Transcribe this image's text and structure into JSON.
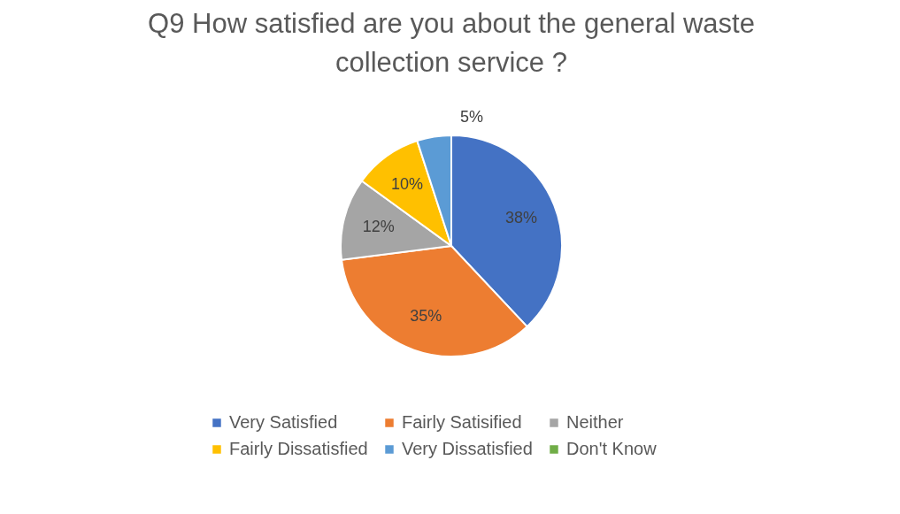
{
  "chart_data": {
    "type": "pie",
    "title": "Q9 How satisfied are you about the general waste collection service ?",
    "categories": [
      "Very Satisfied",
      "Fairly Satisified",
      "Neither",
      "Fairly Dissatisfied",
      "Very Dissatisfied",
      "Don't Know"
    ],
    "values": [
      38,
      35,
      12,
      10,
      5,
      0
    ],
    "colors": [
      "#4472c4",
      "#ed7d31",
      "#a5a5a5",
      "#ffc000",
      "#5b9bd5",
      "#70ad47"
    ],
    "value_labels": [
      "38%",
      "35%",
      "12%",
      "10%",
      "5%",
      null
    ],
    "legend": "bottom"
  }
}
